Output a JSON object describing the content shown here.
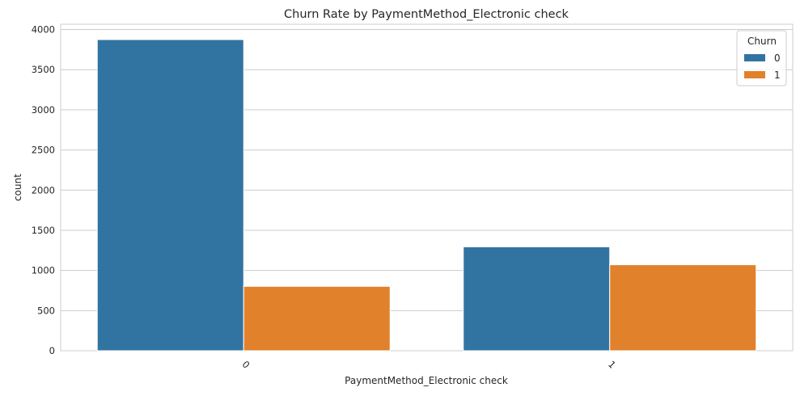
{
  "chart_data": {
    "type": "bar",
    "title": "Churn Rate by PaymentMethod_Electronic check",
    "xlabel": "PaymentMethod_Electronic check",
    "ylabel": "count",
    "categories": [
      "0",
      "1"
    ],
    "series": [
      {
        "name": "0",
        "color": "#3274a1",
        "values": [
          3875,
          1294
        ]
      },
      {
        "name": "1",
        "color": "#e1812c",
        "values": [
          802,
          1071
        ]
      }
    ],
    "ylim": [
      0,
      4066
    ],
    "yticks": [
      0,
      500,
      1000,
      1500,
      2000,
      2500,
      3000,
      3500,
      4000
    ],
    "grid": true,
    "legend": {
      "title": "Churn",
      "placement": "top-right"
    }
  }
}
